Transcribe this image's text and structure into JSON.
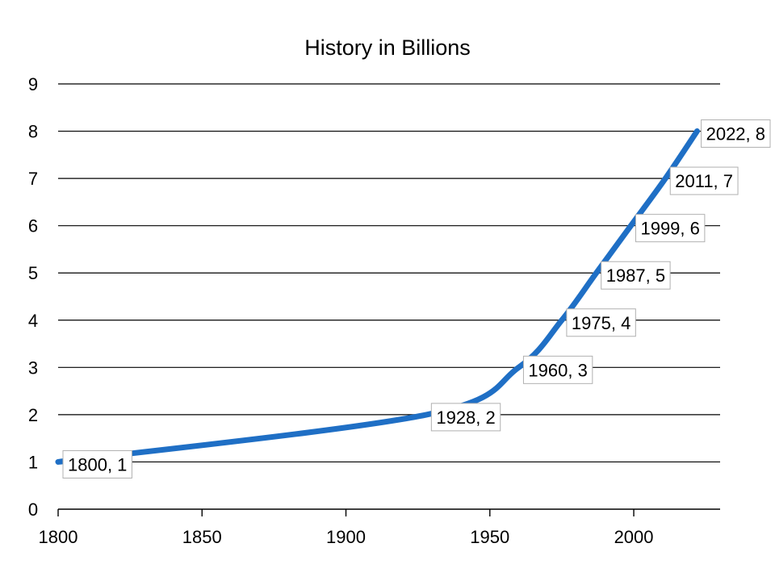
{
  "chart_data": {
    "type": "line",
    "title": "History in Billions",
    "xlabel": "",
    "ylabel": "",
    "xlim": [
      1800,
      2030
    ],
    "ylim": [
      0,
      9
    ],
    "x_ticks": [
      1800,
      1850,
      1900,
      1950,
      2000
    ],
    "y_ticks": [
      0,
      1,
      2,
      3,
      4,
      5,
      6,
      7,
      8,
      9
    ],
    "grid": true,
    "legend": "none",
    "series": [
      {
        "color": "#1f6fc5",
        "points": [
          {
            "x": 1800,
            "y": 1,
            "label": "1800, 1"
          },
          {
            "x": 1928,
            "y": 2,
            "label": "1928, 2"
          },
          {
            "x": 1960,
            "y": 3,
            "label": "1960, 3"
          },
          {
            "x": 1975,
            "y": 4,
            "label": "1975, 4"
          },
          {
            "x": 1987,
            "y": 5,
            "label": "1987, 5"
          },
          {
            "x": 1999,
            "y": 6,
            "label": "1999, 6"
          },
          {
            "x": 2011,
            "y": 7,
            "label": "2011, 7"
          },
          {
            "x": 2022,
            "y": 8,
            "label": "2022, 8"
          }
        ]
      }
    ]
  }
}
